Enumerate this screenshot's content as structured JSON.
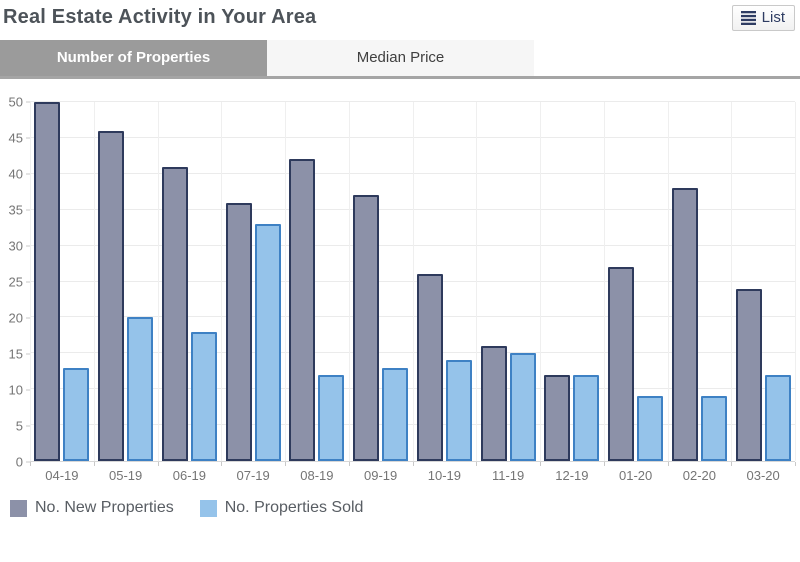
{
  "header": {
    "title": "Real Estate Activity in Your Area",
    "list_button_label": "List"
  },
  "tabs": [
    {
      "label": "Number of Properties",
      "active": true
    },
    {
      "label": "Median Price",
      "active": false
    }
  ],
  "chart_data": {
    "type": "bar",
    "categories": [
      "04-19",
      "05-19",
      "06-19",
      "07-19",
      "08-19",
      "09-19",
      "10-19",
      "11-19",
      "12-19",
      "01-20",
      "02-20",
      "03-20"
    ],
    "series": [
      {
        "name": "No. New Properties",
        "values": [
          50,
          46,
          41,
          36,
          42,
          37,
          26,
          16,
          12,
          27,
          38,
          24
        ],
        "fill": "#8c91a8",
        "stroke": "#2e3a5c"
      },
      {
        "name": "No. Properties Sold",
        "values": [
          13,
          20,
          18,
          33,
          12,
          13,
          14,
          15,
          12,
          9,
          9,
          12
        ],
        "fill": "#95c3ea",
        "stroke": "#3e81c4"
      }
    ],
    "title": "",
    "xlabel": "",
    "ylabel": "",
    "ylim": [
      0,
      50
    ],
    "ytick_step": 5,
    "grid": true,
    "legend_position": "bottom"
  },
  "colors": {
    "tab_active_bg": "#9b9b9b",
    "tab_inactive_bg": "#f6f6f6",
    "accent_dark_bar": "#8c91a8",
    "accent_light_bar": "#95c3ea",
    "list_button_text": "#2e3c62"
  }
}
